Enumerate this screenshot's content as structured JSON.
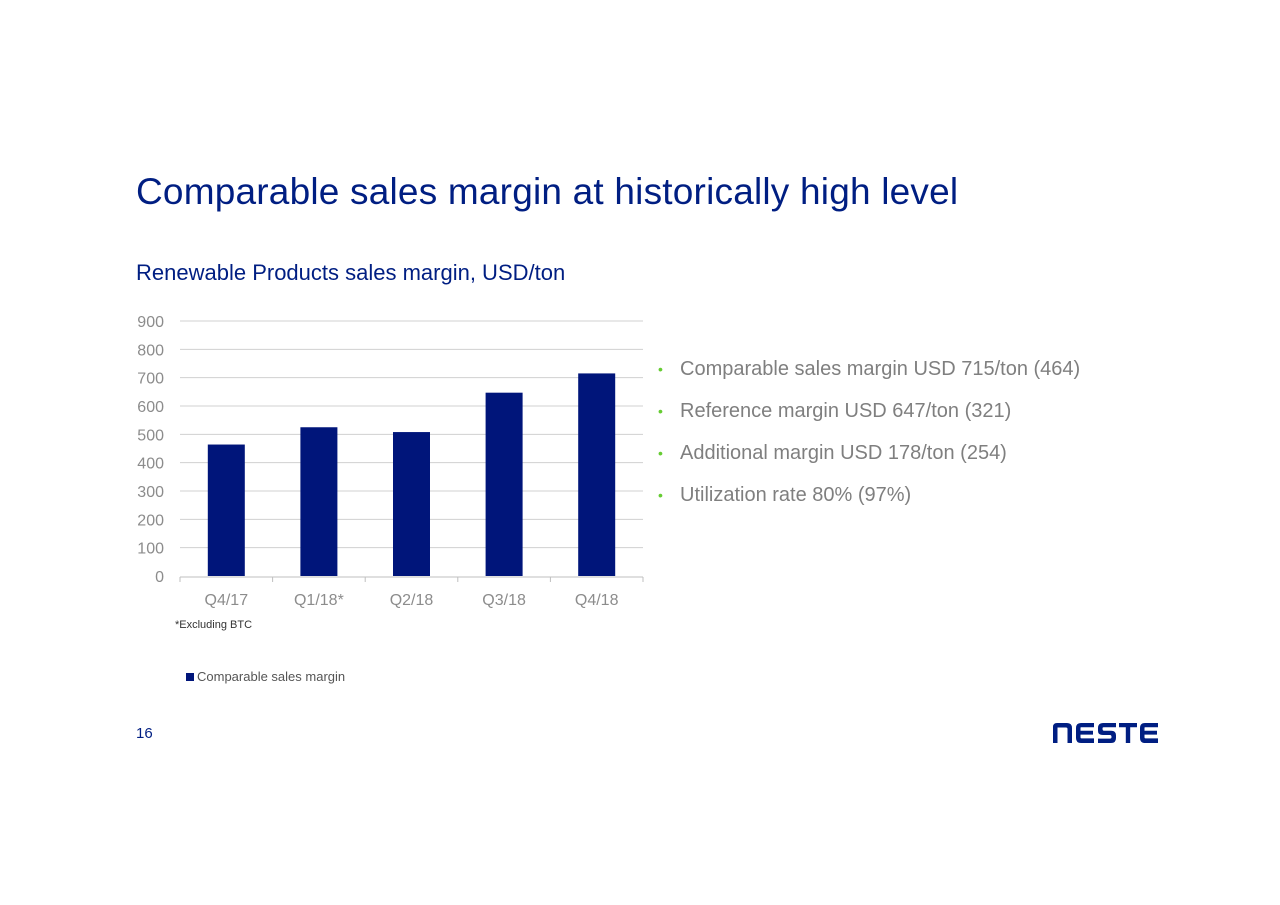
{
  "slide": {
    "title": "Comparable sales margin at historically high level",
    "page_number": "16",
    "logo_text": "NESTE"
  },
  "chart_subtitle": "Renewable Products sales margin, USD/ton",
  "footnote": "*Excluding BTC",
  "bullets": [
    "Comparable sales margin USD 715/ton (464)",
    "Reference margin USD 647/ton (321)",
    "Additional margin USD 178/ton (254)",
    "Utilization rate 80% (97%)"
  ],
  "colors": {
    "brand_navy": "#001e82",
    "bar": "#00157a",
    "bullet_green": "#66cc33",
    "gridline": "#d0d0d0",
    "axis_text": "#8c8c8c"
  },
  "chart_data": {
    "type": "bar",
    "title": "Renewable Products sales margin, USD/ton",
    "categories": [
      "Q4/17",
      "Q1/18*",
      "Q2/18",
      "Q3/18",
      "Q4/18"
    ],
    "series": [
      {
        "name": "Comparable sales margin",
        "values": [
          464,
          525,
          508,
          647,
          715
        ]
      }
    ],
    "ylim": [
      0,
      900
    ],
    "yticks": [
      0,
      100,
      200,
      300,
      400,
      500,
      600,
      700,
      800,
      900
    ],
    "grid": true,
    "legend": "bottom-left",
    "xlabel": "",
    "ylabel": ""
  }
}
